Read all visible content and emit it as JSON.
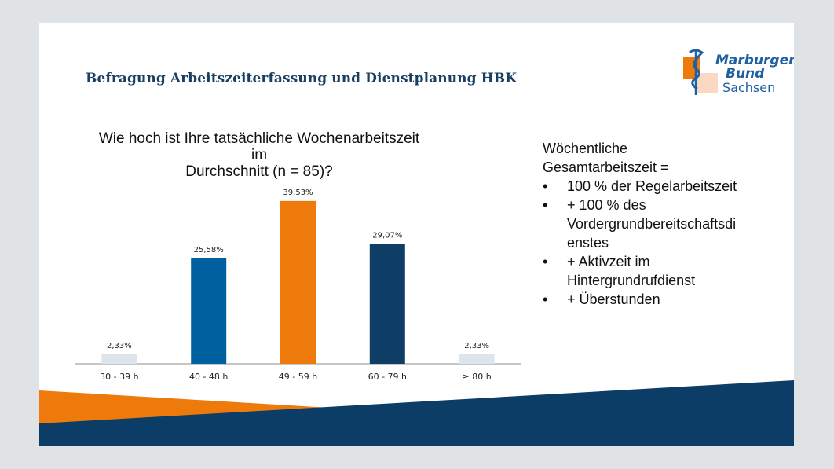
{
  "slide": {
    "title": "Befragung Arbeitszeiterfassung und Dienstplanung HBK",
    "logo": {
      "line1": "Marburger",
      "line2": "Bund",
      "line3": "Sachsen",
      "icon": "rod-of-asclepius-icon"
    },
    "side_text": {
      "heading_line1": "Wöchentliche",
      "heading_line2": "Gesamtarbeitszeit =",
      "bullets": [
        "100 % der Regelarbeitszeit",
        "+ 100 % des Vordergrundbereitschaftsdienstes",
        "+ Aktivzeit im Hintergrundrufdienst",
        "+ Überstunden"
      ],
      "bullet_lines": [
        [
          "100 % der Regelarbeitszeit"
        ],
        [
          "+ 100 % des",
          "Vordergrundbereitschaftsdi",
          "enstes"
        ],
        [
          "+ Aktivzeit im",
          "Hintergrundrufdienst"
        ],
        [
          "+ Überstunden"
        ]
      ],
      "bullet_symbol": "•"
    },
    "colors": {
      "orange": "#ee7a0c",
      "blue": "#0061a1",
      "navy": "#0e3d66",
      "light": "#dde4ec",
      "title": "#1a3f62",
      "background": "#e0e3e6"
    }
  },
  "chart_data": {
    "type": "bar",
    "title": "Wie hoch ist Ihre tatsächliche Wochenarbeitszeit im Durchschnitt (n = 85)?",
    "title_lines": [
      "Wie hoch ist Ihre tatsächliche Wochenarbeitszeit im",
      "Durchschnitt (n = 85)?"
    ],
    "categories": [
      "30 - 39 h",
      "40 - 48 h",
      "49 - 59 h",
      "60 - 79 h",
      "≥ 80 h"
    ],
    "values": [
      2.33,
      25.58,
      39.53,
      29.07,
      2.33
    ],
    "data_labels": [
      "2,33%",
      "25,58%",
      "39,53%",
      "29,07%",
      "2,33%"
    ],
    "bar_colors": [
      "#dde4ec",
      "#0061a1",
      "#ee7a0c",
      "#0e3d66",
      "#dde4ec"
    ],
    "unit": "%",
    "xlabel": "",
    "ylabel": "",
    "ylim": [
      0,
      40
    ],
    "grid": false,
    "legend": "none"
  }
}
